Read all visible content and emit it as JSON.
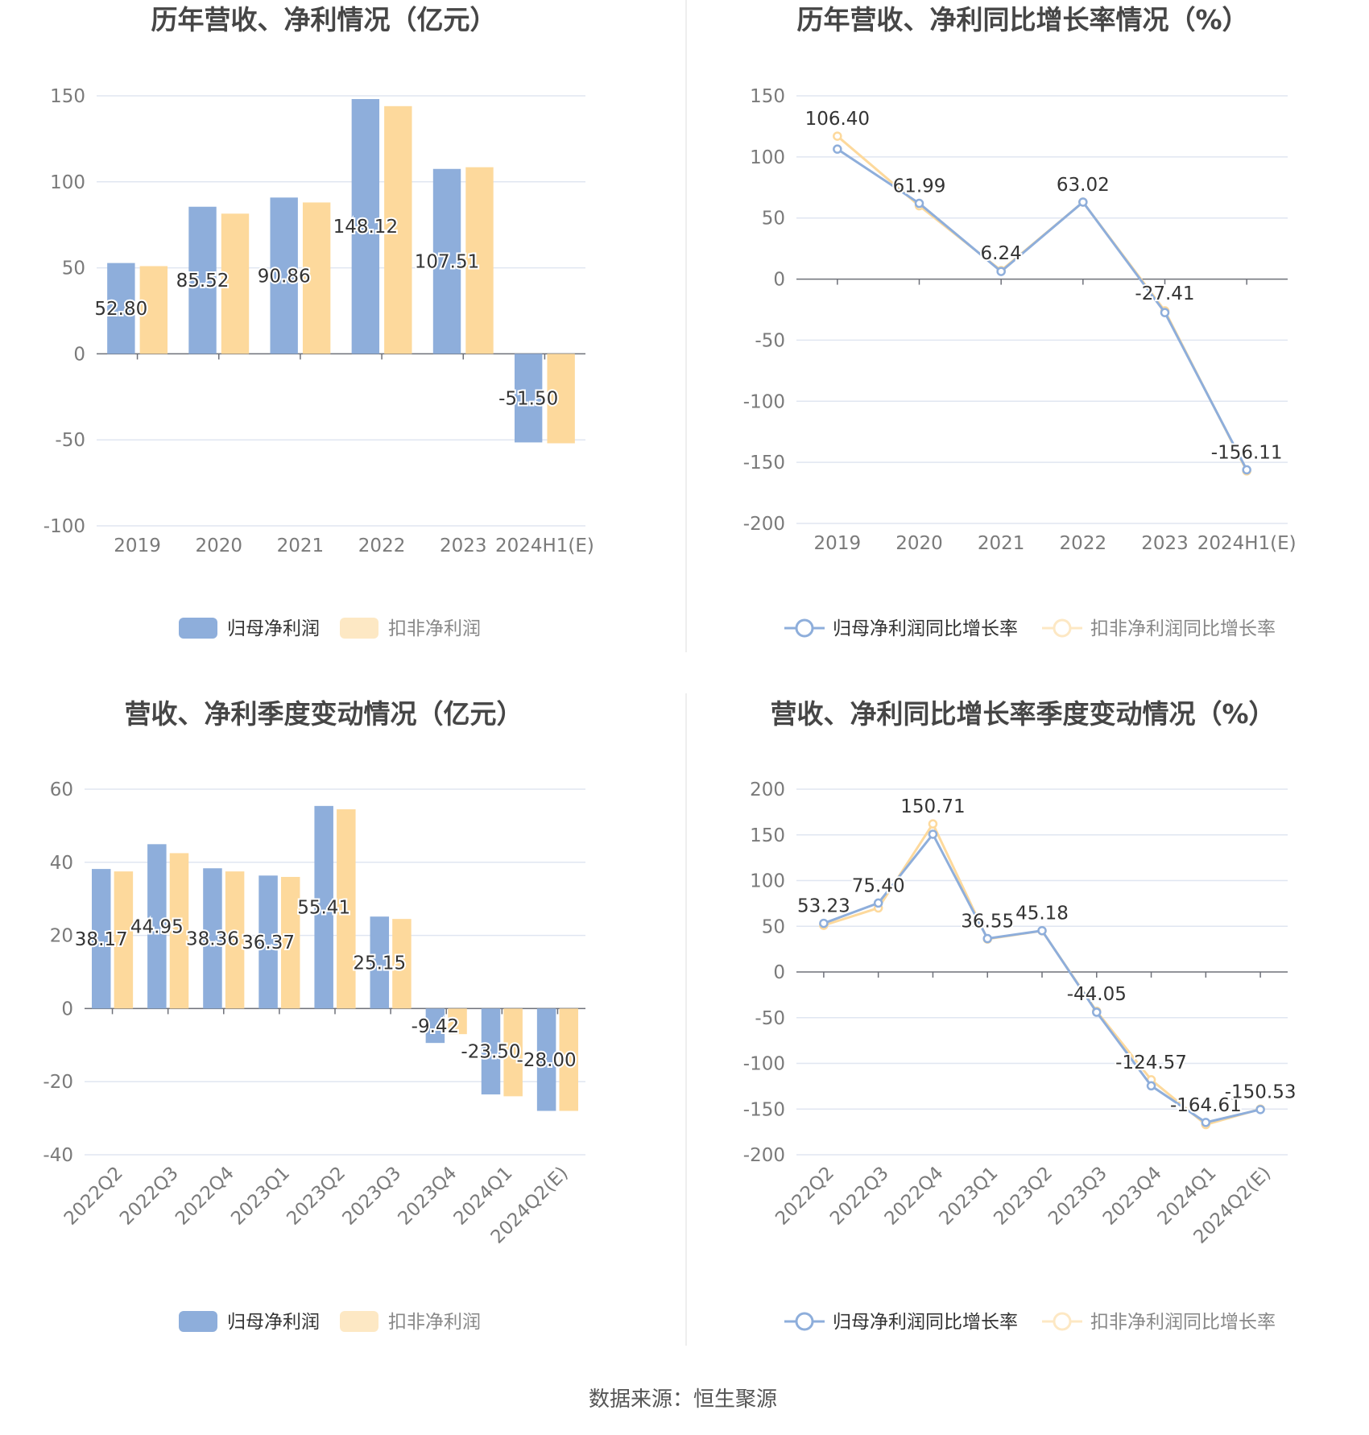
{
  "source": "数据来源：恒生聚源",
  "colors": {
    "series1": "#8eaedb",
    "series2": "#fdd99c",
    "grid": "#e0e6f1",
    "axis": "#6e7079"
  },
  "chart_data": [
    {
      "type": "bar",
      "title": "历年营收、净利情况（亿元）",
      "categories": [
        "2019",
        "2020",
        "2021",
        "2022",
        "2023",
        "2024H1(E)"
      ],
      "ylim": [
        -100,
        150
      ],
      "yticks": [
        150,
        100,
        50,
        0,
        -50,
        -100
      ],
      "grid": true,
      "legend_position": "bottom",
      "series": [
        {
          "name": "归母净利润",
          "values": [
            52.8,
            85.52,
            90.86,
            148.12,
            107.51,
            -51.5
          ],
          "labels": [
            "52.80",
            "85.52",
            "90.86",
            "148.12",
            "107.51",
            "-51.50"
          ]
        },
        {
          "name": "扣非净利润",
          "values": [
            51.0,
            81.5,
            88.0,
            144.0,
            108.5,
            -52.0
          ]
        }
      ]
    },
    {
      "type": "line",
      "title": "历年营收、净利同比增长率情况（%）",
      "categories": [
        "2019",
        "2020",
        "2021",
        "2022",
        "2023",
        "2024H1(E)"
      ],
      "ylim": [
        -200,
        150
      ],
      "yticks": [
        150,
        100,
        50,
        0,
        -50,
        -100,
        -150,
        -200
      ],
      "grid": true,
      "legend_position": "bottom",
      "series": [
        {
          "name": "归母净利润同比增长率",
          "values": [
            106.4,
            61.99,
            6.24,
            63.02,
            -27.41,
            -156.11
          ],
          "labels": [
            "106.40",
            "61.99",
            "6.24",
            "63.02",
            "-27.41",
            "-156.11"
          ]
        },
        {
          "name": "扣非净利润同比增长率",
          "values": [
            117.0,
            60.0,
            7.0,
            63.0,
            -26.0,
            -157.0
          ]
        }
      ]
    },
    {
      "type": "bar",
      "title": "营收、净利季度变动情况（亿元）",
      "categories": [
        "2022Q2",
        "2022Q3",
        "2022Q4",
        "2023Q1",
        "2023Q2",
        "2023Q3",
        "2023Q4",
        "2024Q1",
        "2024Q2(E)"
      ],
      "ylim": [
        -40,
        60
      ],
      "yticks": [
        60,
        40,
        20,
        0,
        -20,
        -40
      ],
      "grid": true,
      "legend_position": "bottom",
      "series": [
        {
          "name": "归母净利润",
          "values": [
            38.17,
            44.95,
            38.36,
            36.37,
            55.41,
            25.15,
            -9.42,
            -23.5,
            -28.0
          ],
          "labels": [
            "38.17",
            "44.95",
            "38.36",
            "36.37",
            "55.41",
            "25.15",
            "-9.42",
            "-23.50",
            "-28.00"
          ]
        },
        {
          "name": "扣非净利润",
          "values": [
            37.5,
            42.5,
            37.5,
            36.0,
            54.5,
            24.5,
            -7.0,
            -24.0,
            -28.0
          ]
        }
      ]
    },
    {
      "type": "line",
      "title": "营收、净利同比增长率季度变动情况（%）",
      "categories": [
        "2022Q2",
        "2022Q3",
        "2022Q4",
        "2023Q1",
        "2023Q2",
        "2023Q3",
        "2023Q4",
        "2024Q1",
        "2024Q2(E)"
      ],
      "ylim": [
        -200,
        200
      ],
      "yticks": [
        200,
        150,
        100,
        50,
        0,
        -50,
        -100,
        -150,
        -200
      ],
      "grid": true,
      "legend_position": "bottom",
      "series": [
        {
          "name": "归母净利润同比增长率",
          "values": [
            53.23,
            75.4,
            150.71,
            36.55,
            45.18,
            -44.05,
            -124.57,
            -164.61,
            -150.53
          ],
          "labels": [
            "53.23",
            "75.40",
            "150.71",
            "36.55",
            "45.18",
            "-44.05",
            "-124.57",
            "-164.61",
            "-150.53"
          ]
        },
        {
          "name": "扣非净利润同比增长率",
          "values": [
            51.0,
            70.0,
            162.0,
            36.0,
            45.0,
            -43.0,
            -118.0,
            -167.0,
            -150.0
          ]
        }
      ]
    }
  ]
}
